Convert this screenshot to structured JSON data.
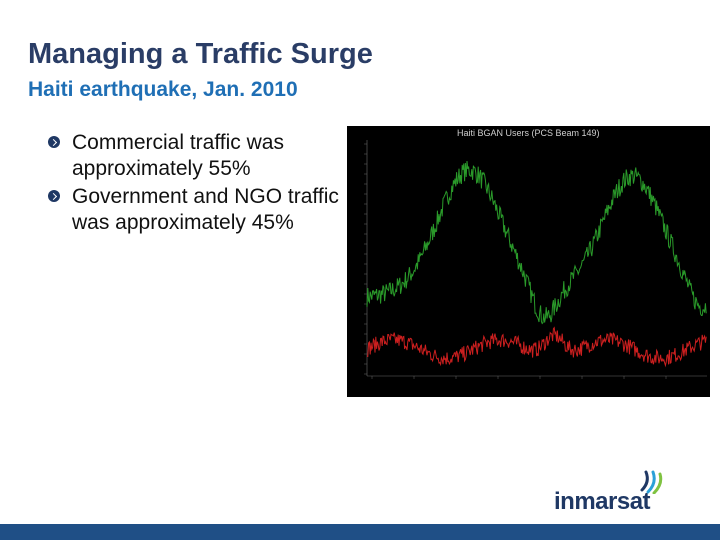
{
  "slide": {
    "title": "Managing a Traffic Surge",
    "subtitle": "Haiti earthquake, Jan. 2010"
  },
  "bullets": [
    {
      "text": "Commercial traffic was approximately 55%"
    },
    {
      "text": "Government and NGO traffic was approximately 45%"
    }
  ],
  "chart": {
    "title": "Haiti BGAN Users (PCS Beam 149)",
    "series_colors": {
      "upper": "#2a9a2a",
      "lower": "#cc1f1f"
    }
  },
  "logo": {
    "text": "inmarsat",
    "icon": "inmarsat-waves-icon",
    "colors": {
      "text": "#1f3864",
      "accent": "#2aa0d8"
    }
  },
  "colors": {
    "title": "#2a3d66",
    "subtitle": "#1f6fb5",
    "footer": "#1f4f86"
  }
}
